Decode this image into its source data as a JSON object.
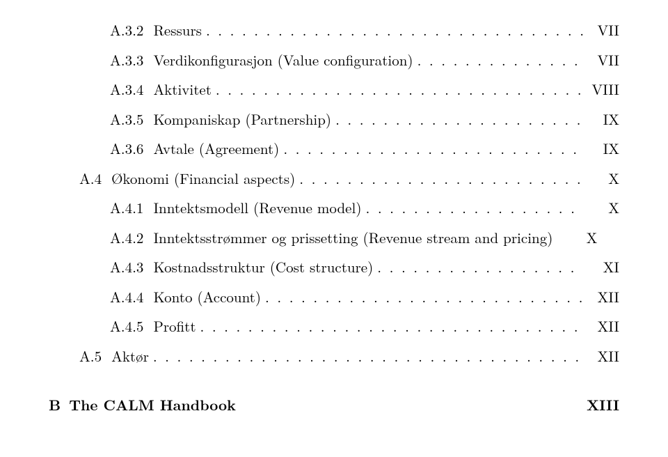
{
  "toc": [
    {
      "indent": 2,
      "num": "A.3.2",
      "title": "Ressurs",
      "page": "VII"
    },
    {
      "indent": 2,
      "num": "A.3.3",
      "title": "Verdikonfigurasjon (Value configuration)",
      "page": "VII"
    },
    {
      "indent": 2,
      "num": "A.3.4",
      "title": "Aktivitet",
      "page": "VIII"
    },
    {
      "indent": 2,
      "num": "A.3.5",
      "title": "Kompaniskap (Partnership)",
      "page": "IX"
    },
    {
      "indent": 2,
      "num": "A.3.6",
      "title": "Avtale (Agreement)",
      "page": "IX"
    },
    {
      "indent": 1,
      "num": "A.4",
      "title": "Økonomi (Financial aspects)",
      "page": "X"
    },
    {
      "indent": 2,
      "num": "A.4.1",
      "title": "Inntektsmodell (Revenue model)",
      "page": "X"
    },
    {
      "indent": 2,
      "num": "A.4.2",
      "title": "Inntektsstrømmer og prissetting (Revenue stream and pricing)",
      "page": "X",
      "nodots": true
    },
    {
      "indent": 2,
      "num": "A.4.3",
      "title": "Kostnadsstruktur (Cost structure)",
      "page": "XI"
    },
    {
      "indent": 2,
      "num": "A.4.4",
      "title": "Konto (Account)",
      "page": "XII"
    },
    {
      "indent": 2,
      "num": "A.4.5",
      "title": "Profitt",
      "page": "XII"
    },
    {
      "indent": 1,
      "num": "A.5",
      "title": "Aktør",
      "page": "XII"
    }
  ],
  "appendix": {
    "num": "B",
    "title": "The CALM Handbook",
    "page": "XIII"
  },
  "style": {
    "font_family": "Latin Modern Roman / Computer Modern serif",
    "body_fontsize_pt": 16,
    "text_color": "#000000",
    "background_color": "#ffffff",
    "bold_appendix": true
  }
}
